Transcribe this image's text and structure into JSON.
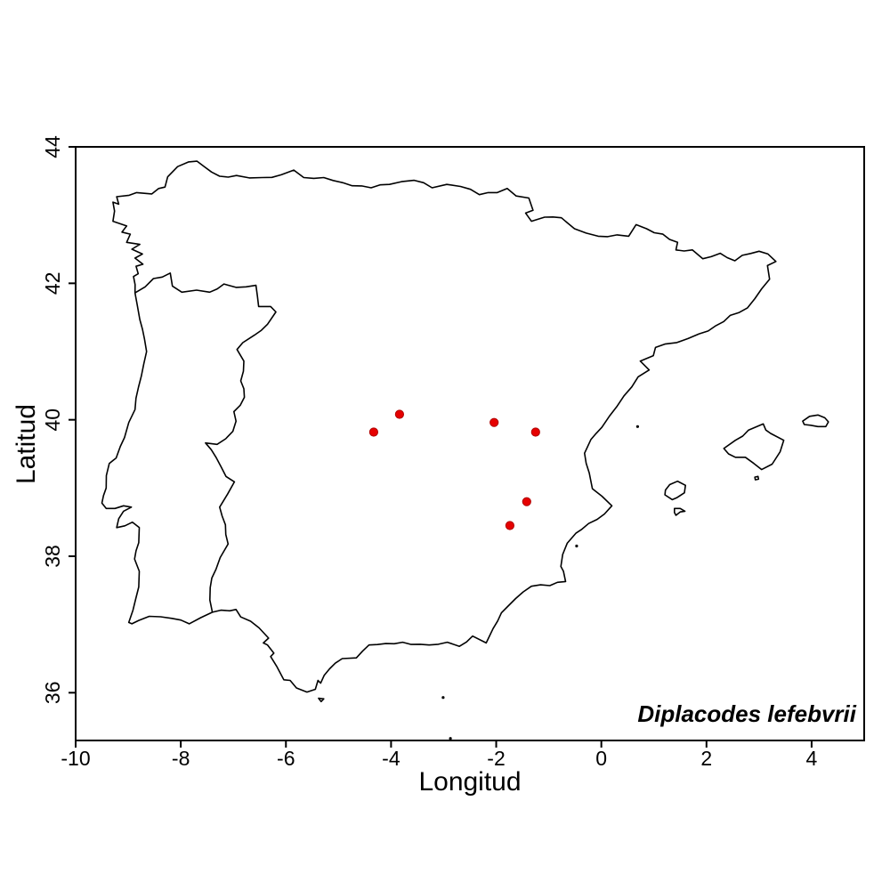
{
  "figure": {
    "xlabel": "Longitud",
    "ylabel": "Latitud",
    "annotation": "Diplacodes lefebvrii",
    "background_color": "#ffffff",
    "line_color": "#000000",
    "point_color": "#e60000",
    "point_edge_color": "#b00000"
  },
  "chart_data": {
    "type": "scatter",
    "title": "",
    "xlabel": "Longitud",
    "ylabel": "Latitud",
    "xlim": [
      -10,
      5
    ],
    "ylim": [
      35.3,
      44.0
    ],
    "x_ticks": [
      -10,
      -8,
      -6,
      -4,
      -2,
      0,
      2,
      4
    ],
    "y_ticks": [
      36,
      38,
      40,
      42,
      44
    ],
    "grid": false,
    "legend": "none",
    "annotation": "Diplacodes lefebvrii",
    "points": [
      {
        "lon": -4.33,
        "lat": 39.82
      },
      {
        "lon": -3.84,
        "lat": 40.08
      },
      {
        "lon": -2.04,
        "lat": 39.96
      },
      {
        "lon": -1.25,
        "lat": 39.82
      },
      {
        "lon": -1.42,
        "lat": 38.8
      },
      {
        "lon": -1.74,
        "lat": 38.45
      }
    ]
  },
  "map": {
    "outline_color": "#000000",
    "polygons": {
      "iberia": [
        [
          -7.69,
          43.79
        ],
        [
          -7.26,
          43.57
        ],
        [
          -6.94,
          43.58
        ],
        [
          -6.45,
          43.55
        ],
        [
          -6.09,
          43.59
        ],
        [
          -5.85,
          43.66
        ],
        [
          -5.66,
          43.55
        ],
        [
          -5.28,
          43.55
        ],
        [
          -4.74,
          43.43
        ],
        [
          -4.38,
          43.4
        ],
        [
          -4.03,
          43.45
        ],
        [
          -3.8,
          43.49
        ],
        [
          -3.56,
          43.51
        ],
        [
          -3.22,
          43.4
        ],
        [
          -2.94,
          43.45
        ],
        [
          -2.68,
          43.42
        ],
        [
          -2.32,
          43.3
        ],
        [
          -1.98,
          43.33
        ],
        [
          -1.79,
          43.39
        ],
        [
          -1.62,
          43.28
        ],
        [
          -1.38,
          43.25
        ],
        [
          -1.3,
          43.07
        ],
        [
          -1.44,
          43.03
        ],
        [
          -1.33,
          42.91
        ],
        [
          -1.08,
          42.97
        ],
        [
          -0.76,
          42.96
        ],
        [
          -0.51,
          42.8
        ],
        [
          -0.06,
          42.69
        ],
        [
          0.3,
          42.71
        ],
        [
          0.52,
          42.69
        ],
        [
          0.66,
          42.86
        ],
        [
          0.86,
          42.8
        ],
        [
          1.17,
          42.72
        ],
        [
          1.45,
          42.6
        ],
        [
          1.42,
          42.49
        ],
        [
          1.73,
          42.49
        ],
        [
          1.93,
          42.36
        ],
        [
          2.09,
          42.39
        ],
        [
          2.26,
          42.44
        ],
        [
          2.54,
          42.33
        ],
        [
          2.68,
          42.41
        ],
        [
          3.0,
          42.47
        ],
        [
          3.17,
          42.43
        ],
        [
          3.32,
          42.32
        ],
        [
          3.16,
          42.26
        ],
        [
          3.2,
          42.06
        ],
        [
          3.05,
          41.92
        ],
        [
          2.78,
          41.64
        ],
        [
          2.45,
          41.53
        ],
        [
          2.18,
          41.38
        ],
        [
          1.86,
          41.26
        ],
        [
          1.65,
          41.19
        ],
        [
          1.21,
          41.11
        ],
        [
          1.03,
          41.06
        ],
        [
          0.99,
          40.94
        ],
        [
          0.74,
          40.86
        ],
        [
          0.91,
          40.73
        ],
        [
          0.7,
          40.63
        ],
        [
          0.43,
          40.35
        ],
        [
          0.16,
          40.06
        ],
        [
          0.01,
          39.89
        ],
        [
          -0.2,
          39.71
        ],
        [
          -0.32,
          39.51
        ],
        [
          -0.23,
          39.22
        ],
        [
          -0.17,
          38.99
        ],
        [
          0.01,
          38.88
        ],
        [
          0.2,
          38.74
        ],
        [
          0.06,
          38.62
        ],
        [
          -0.08,
          38.54
        ],
        [
          -0.38,
          38.39
        ],
        [
          -0.48,
          38.34
        ],
        [
          -0.65,
          38.19
        ],
        [
          -0.77,
          37.85
        ],
        [
          -0.72,
          37.78
        ],
        [
          -0.68,
          37.63
        ],
        [
          -0.98,
          37.57
        ],
        [
          -1.33,
          37.56
        ],
        [
          -1.63,
          37.38
        ],
        [
          -1.9,
          37.17
        ],
        [
          -2.06,
          36.94
        ],
        [
          -2.19,
          36.73
        ],
        [
          -2.45,
          36.83
        ],
        [
          -2.7,
          36.68
        ],
        [
          -2.93,
          36.74
        ],
        [
          -3.45,
          36.71
        ],
        [
          -3.78,
          36.74
        ],
        [
          -4.1,
          36.72
        ],
        [
          -4.42,
          36.7
        ],
        [
          -4.66,
          36.51
        ],
        [
          -4.93,
          36.5
        ],
        [
          -5.17,
          36.35
        ],
        [
          -5.34,
          36.14
        ],
        [
          -5.39,
          36.18
        ],
        [
          -5.44,
          36.05
        ],
        [
          -5.6,
          36.01
        ],
        [
          -5.8,
          36.07
        ],
        [
          -5.92,
          36.18
        ],
        [
          -6.04,
          36.19
        ],
        [
          -6.17,
          36.38
        ],
        [
          -6.29,
          36.53
        ],
        [
          -6.23,
          36.58
        ],
        [
          -6.35,
          36.7
        ],
        [
          -6.43,
          36.73
        ],
        [
          -6.33,
          36.8
        ],
        [
          -6.51,
          36.95
        ],
        [
          -6.86,
          37.11
        ],
        [
          -6.95,
          37.22
        ],
        [
          -7.07,
          37.2
        ],
        [
          -7.4,
          37.18
        ],
        [
          -7.62,
          37.1
        ],
        [
          -7.84,
          37.01
        ],
        [
          -8.17,
          37.09
        ],
        [
          -8.6,
          37.12
        ],
        [
          -8.8,
          37.06
        ],
        [
          -8.93,
          37.01
        ],
        [
          -8.99,
          37.03
        ],
        [
          -8.91,
          37.21
        ],
        [
          -8.8,
          37.55
        ],
        [
          -8.79,
          37.78
        ],
        [
          -8.88,
          37.96
        ],
        [
          -8.8,
          38.2
        ],
        [
          -8.79,
          38.42
        ],
        [
          -8.92,
          38.5
        ],
        [
          -9.22,
          38.42
        ],
        [
          -9.18,
          38.55
        ],
        [
          -9.09,
          38.66
        ],
        [
          -8.94,
          38.72
        ],
        [
          -9.09,
          38.74
        ],
        [
          -9.42,
          38.7
        ],
        [
          -9.5,
          38.78
        ],
        [
          -9.47,
          38.89
        ],
        [
          -9.42,
          39.0
        ],
        [
          -9.36,
          39.36
        ],
        [
          -9.23,
          39.44
        ],
        [
          -9.15,
          39.61
        ],
        [
          -9.07,
          39.74
        ],
        [
          -8.99,
          39.96
        ],
        [
          -8.87,
          40.15
        ],
        [
          -8.75,
          40.64
        ],
        [
          -8.65,
          41.0
        ],
        [
          -8.69,
          41.18
        ],
        [
          -8.78,
          41.47
        ],
        [
          -8.83,
          41.69
        ],
        [
          -8.87,
          41.86
        ],
        [
          -8.9,
          42.1
        ],
        [
          -8.81,
          42.14
        ],
        [
          -8.85,
          42.25
        ],
        [
          -8.72,
          42.28
        ],
        [
          -8.87,
          42.37
        ],
        [
          -8.73,
          42.43
        ],
        [
          -8.93,
          42.5
        ],
        [
          -8.78,
          42.57
        ],
        [
          -9.03,
          42.6
        ],
        [
          -8.96,
          42.72
        ],
        [
          -9.12,
          42.75
        ],
        [
          -9.03,
          42.84
        ],
        [
          -9.29,
          42.91
        ],
        [
          -9.26,
          43.06
        ],
        [
          -9.29,
          43.19
        ],
        [
          -9.18,
          43.16
        ],
        [
          -9.22,
          43.27
        ],
        [
          -8.98,
          43.29
        ],
        [
          -8.84,
          43.33
        ],
        [
          -8.55,
          43.31
        ],
        [
          -8.42,
          43.39
        ],
        [
          -8.3,
          43.41
        ],
        [
          -8.25,
          43.56
        ],
        [
          -8.06,
          43.71
        ],
        [
          -7.85,
          43.78
        ]
      ],
      "mallorca": [
        [
          2.33,
          39.58
        ],
        [
          2.55,
          39.7
        ],
        [
          2.8,
          39.85
        ],
        [
          3.08,
          39.94
        ],
        [
          3.13,
          39.85
        ],
        [
          3.22,
          39.8
        ],
        [
          3.47,
          39.7
        ],
        [
          3.4,
          39.53
        ],
        [
          3.25,
          39.35
        ],
        [
          3.05,
          39.27
        ],
        [
          2.9,
          39.36
        ],
        [
          2.74,
          39.45
        ],
        [
          2.55,
          39.45
        ],
        [
          2.42,
          39.5
        ]
      ],
      "menorca": [
        [
          3.83,
          39.98
        ],
        [
          3.96,
          40.05
        ],
        [
          4.12,
          40.07
        ],
        [
          4.25,
          40.03
        ],
        [
          4.32,
          39.97
        ],
        [
          4.27,
          39.9
        ],
        [
          4.12,
          39.9
        ],
        [
          3.98,
          39.92
        ],
        [
          3.86,
          39.93
        ]
      ],
      "ibiza": [
        [
          1.22,
          38.97
        ],
        [
          1.3,
          39.05
        ],
        [
          1.45,
          39.1
        ],
        [
          1.6,
          39.04
        ],
        [
          1.58,
          38.93
        ],
        [
          1.44,
          38.86
        ],
        [
          1.35,
          38.83
        ],
        [
          1.21,
          38.9
        ]
      ],
      "formentera": [
        [
          1.39,
          38.7
        ],
        [
          1.5,
          38.7
        ],
        [
          1.59,
          38.66
        ],
        [
          1.5,
          38.65
        ],
        [
          1.42,
          38.6
        ],
        [
          1.39,
          38.64
        ]
      ],
      "cabrera": [
        [
          2.92,
          39.16
        ],
        [
          2.98,
          39.17
        ],
        [
          2.99,
          39.13
        ],
        [
          2.93,
          39.12
        ]
      ],
      "ceuta": [
        [
          -5.38,
          35.92
        ],
        [
          -5.28,
          35.91
        ],
        [
          -5.33,
          35.87
        ]
      ]
    },
    "border_line": [
      [
        -8.87,
        41.86
      ],
      [
        -8.52,
        42.07
      ],
      [
        -8.2,
        42.15
      ],
      [
        -8.16,
        41.96
      ],
      [
        -7.98,
        41.87
      ],
      [
        -7.7,
        41.9
      ],
      [
        -7.45,
        41.87
      ],
      [
        -7.18,
        41.99
      ],
      [
        -6.95,
        41.94
      ],
      [
        -6.57,
        41.97
      ],
      [
        -6.52,
        41.66
      ],
      [
        -6.29,
        41.66
      ],
      [
        -6.19,
        41.58
      ],
      [
        -6.35,
        41.4
      ],
      [
        -6.6,
        41.24
      ],
      [
        -6.82,
        41.13
      ],
      [
        -6.93,
        41.03
      ],
      [
        -6.8,
        40.86
      ],
      [
        -6.86,
        40.57
      ],
      [
        -6.79,
        40.33
      ],
      [
        -6.99,
        40.12
      ],
      [
        -6.95,
        39.98
      ],
      [
        -7.01,
        39.83
      ],
      [
        -7.31,
        39.64
      ],
      [
        -7.53,
        39.66
      ],
      [
        -7.33,
        39.45
      ],
      [
        -7.14,
        39.17
      ],
      [
        -6.98,
        39.09
      ],
      [
        -7.11,
        38.91
      ],
      [
        -7.26,
        38.72
      ],
      [
        -7.15,
        38.46
      ],
      [
        -7.1,
        38.18
      ],
      [
        -7.25,
        37.98
      ],
      [
        -7.33,
        37.81
      ],
      [
        -7.44,
        37.54
      ],
      [
        -7.4,
        37.18
      ]
    ],
    "islets": [
      [
        0.69,
        39.9
      ],
      [
        -0.47,
        38.15
      ],
      [
        -3.01,
        35.93
      ],
      [
        -2.87,
        35.33
      ]
    ]
  }
}
